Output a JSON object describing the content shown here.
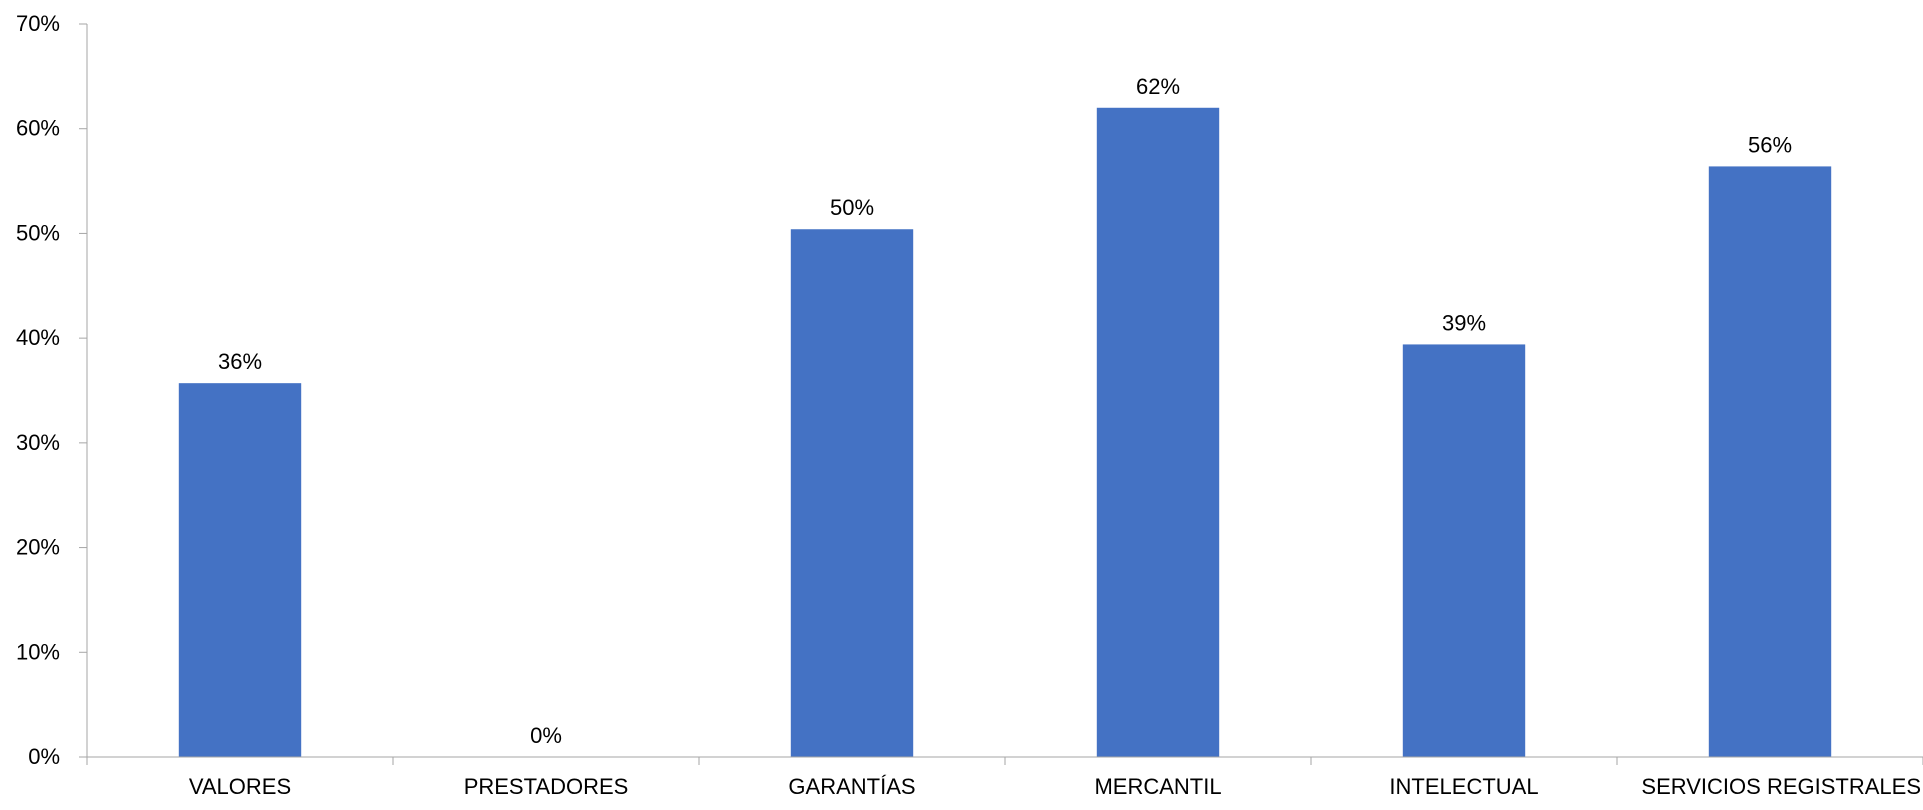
{
  "chart_data": {
    "type": "bar",
    "title": "",
    "xlabel": "",
    "ylabel": "",
    "categories": [
      "VALORES",
      "PRESTADORES",
      "GARANTÍAS",
      "MERCANTIL",
      "INTELECTUAL",
      "SERVICIOS REGISTRALES"
    ],
    "values": [
      35.7,
      0,
      50.4,
      62.0,
      39.4,
      56.4
    ],
    "data_labels": [
      "36%",
      "0%",
      "50%",
      "62%",
      "39%",
      "56%"
    ],
    "ylim": [
      0,
      70
    ],
    "yticks": [
      0,
      10,
      20,
      30,
      40,
      50,
      60,
      70
    ],
    "ytick_labels": [
      "0%",
      "10%",
      "20%",
      "30%",
      "40%",
      "50%",
      "60%",
      "70%"
    ],
    "grid": false,
    "legend": "none",
    "colors": {
      "bar": "#4472C4",
      "axis": "#A6A6A6"
    }
  }
}
